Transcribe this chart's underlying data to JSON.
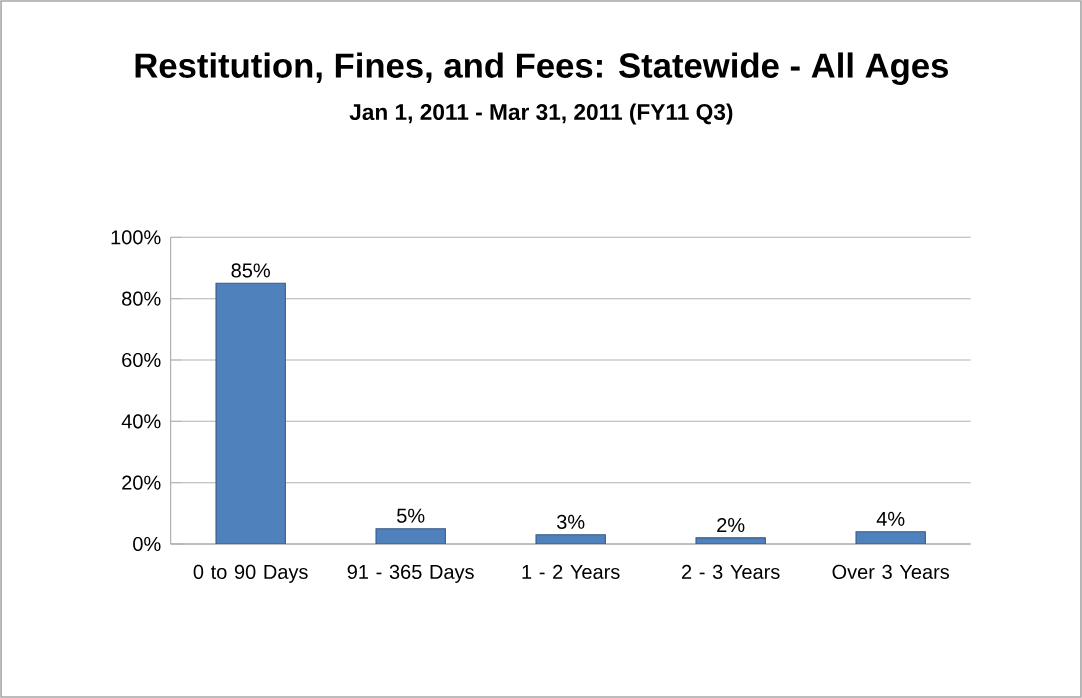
{
  "chart_data": {
    "type": "bar",
    "title": "Restitution, Fines, and Fees: Statewide - All Ages",
    "subtitle": "Jan 1, 2011 - Mar 31, 2011 (FY11 Q3)",
    "categories": [
      "0 to 90 Days",
      "91 - 365 Days",
      "1 - 2 Years",
      "2 - 3 Years",
      "Over 3 Years"
    ],
    "values": [
      85,
      5,
      3,
      2,
      4
    ],
    "value_labels": [
      "85%",
      "5%",
      "3%",
      "2%",
      "4%"
    ],
    "color": "#4f81bd",
    "ylim": [
      0,
      100
    ],
    "yticks": [
      {
        "value": 0,
        "label": "0%"
      },
      {
        "value": 20,
        "label": "20%"
      },
      {
        "value": 40,
        "label": "40%"
      },
      {
        "value": 60,
        "label": "60%"
      },
      {
        "value": 80,
        "label": "80%"
      },
      {
        "value": 100,
        "label": "100%"
      }
    ],
    "grid": "y"
  }
}
